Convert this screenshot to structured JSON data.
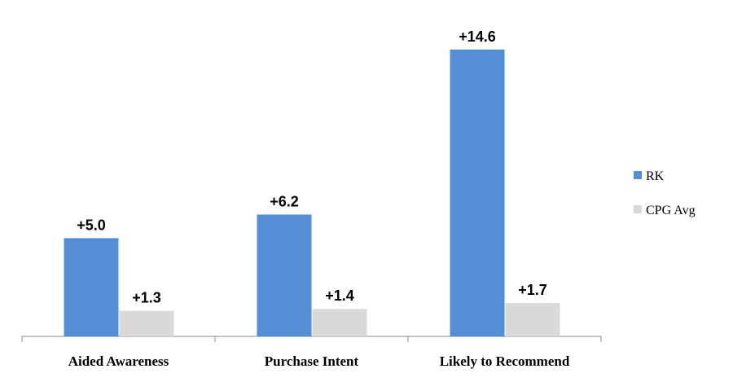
{
  "chart_data": {
    "type": "bar",
    "categories": [
      "Aided Awareness",
      "Purchase Intent",
      "Likely to Recommend"
    ],
    "series": [
      {
        "name": "RK",
        "color": "#558ed5",
        "values": [
          5.0,
          6.2,
          14.6
        ],
        "value_labels": [
          "+5.0",
          "+6.2",
          "+14.6"
        ]
      },
      {
        "name": "CPG Avg",
        "color": "#d9d9d9",
        "values": [
          1.3,
          1.4,
          1.7
        ],
        "value_labels": [
          "+1.3",
          "+1.4",
          "+1.7"
        ]
      }
    ],
    "ylim": [
      0,
      16
    ],
    "legend": "right"
  }
}
